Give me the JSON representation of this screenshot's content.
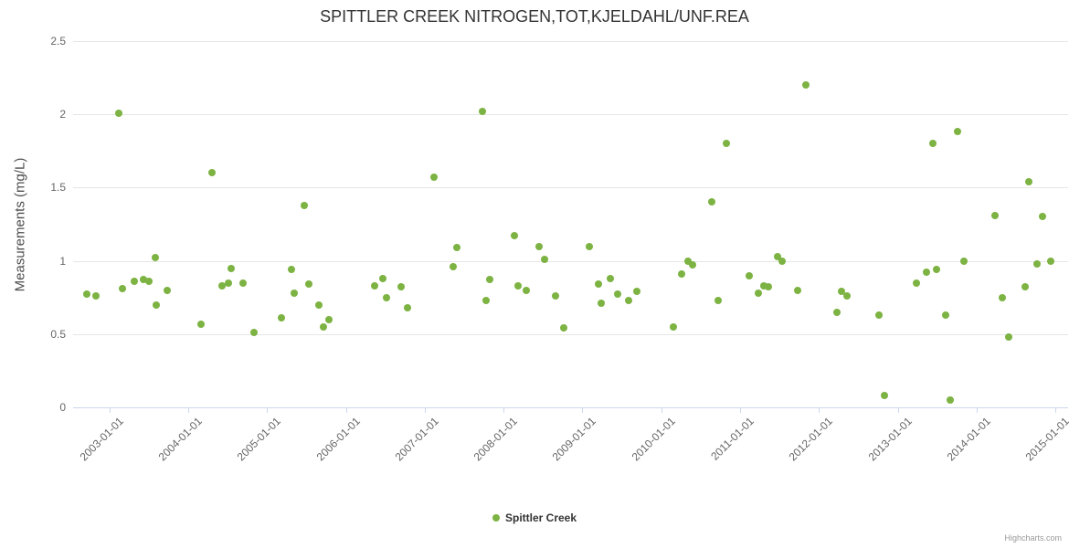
{
  "credits": "Highcharts.com",
  "colors": {
    "point": "#7cb342",
    "grid": "#e6e6e6",
    "axis_line": "#ccd6eb",
    "title": "#333333",
    "axis_label": "#666666",
    "legend_text": "#333333",
    "credits": "#999999"
  },
  "chart_data": {
    "type": "scatter",
    "title": "SPITTLER CREEK NITROGEN,TOT,KJELDAHL/UNF.REA",
    "xlabel": "",
    "ylabel": "Measurements (mg/L)",
    "xlim": [
      2002.54,
      2015.16
    ],
    "ylim": [
      0,
      2.5
    ],
    "grid": "horizontal",
    "legend_position": "bottom-center",
    "x_ticks": [
      {
        "value": 2003,
        "label": "2003-01-01"
      },
      {
        "value": 2004,
        "label": "2004-01-01"
      },
      {
        "value": 2005,
        "label": "2005-01-01"
      },
      {
        "value": 2006,
        "label": "2006-01-01"
      },
      {
        "value": 2007,
        "label": "2007-01-01"
      },
      {
        "value": 2008,
        "label": "2008-01-01"
      },
      {
        "value": 2009,
        "label": "2009-01-01"
      },
      {
        "value": 2010,
        "label": "2010-01-01"
      },
      {
        "value": 2011,
        "label": "2011-01-01"
      },
      {
        "value": 2012,
        "label": "2012-01-01"
      },
      {
        "value": 2013,
        "label": "2013-01-01"
      },
      {
        "value": 2014,
        "label": "2014-01-01"
      },
      {
        "value": 2015,
        "label": "2015-01-01"
      }
    ],
    "y_ticks": [
      {
        "value": 0,
        "label": "0"
      },
      {
        "value": 0.5,
        "label": "0.5"
      },
      {
        "value": 1,
        "label": "1"
      },
      {
        "value": 1.5,
        "label": "1.5"
      },
      {
        "value": 2,
        "label": "2"
      },
      {
        "value": 2.5,
        "label": "2.5"
      }
    ],
    "series": [
      {
        "name": "Spittler Creek",
        "points": [
          [
            2002.71,
            0.77
          ],
          [
            2002.83,
            0.76
          ],
          [
            2003.12,
            2.01
          ],
          [
            2003.17,
            0.81
          ],
          [
            2003.32,
            0.86
          ],
          [
            2003.43,
            0.87
          ],
          [
            2003.5,
            0.86
          ],
          [
            2003.58,
            1.02
          ],
          [
            2003.6,
            0.7
          ],
          [
            2003.73,
            0.8
          ],
          [
            2004.16,
            0.57
          ],
          [
            2004.3,
            1.6
          ],
          [
            2004.43,
            0.83
          ],
          [
            2004.51,
            0.85
          ],
          [
            2004.54,
            0.95
          ],
          [
            2004.69,
            0.85
          ],
          [
            2004.84,
            0.51
          ],
          [
            2005.18,
            0.61
          ],
          [
            2005.31,
            0.94
          ],
          [
            2005.34,
            0.78
          ],
          [
            2005.47,
            1.38
          ],
          [
            2005.53,
            0.84
          ],
          [
            2005.66,
            0.7
          ],
          [
            2005.72,
            0.55
          ],
          [
            2005.79,
            0.6
          ],
          [
            2006.37,
            0.83
          ],
          [
            2006.47,
            0.88
          ],
          [
            2006.52,
            0.75
          ],
          [
            2006.7,
            0.82
          ],
          [
            2006.78,
            0.68
          ],
          [
            2007.12,
            1.57
          ],
          [
            2007.36,
            0.96
          ],
          [
            2007.41,
            1.09
          ],
          [
            2007.73,
            2.02
          ],
          [
            2007.78,
            0.73
          ],
          [
            2007.82,
            0.87
          ],
          [
            2008.14,
            1.17
          ],
          [
            2008.18,
            0.83
          ],
          [
            2008.29,
            0.8
          ],
          [
            2008.45,
            1.1
          ],
          [
            2008.52,
            1.01
          ],
          [
            2008.66,
            0.76
          ],
          [
            2008.76,
            0.54
          ],
          [
            2009.09,
            1.1
          ],
          [
            2009.2,
            0.84
          ],
          [
            2009.24,
            0.71
          ],
          [
            2009.35,
            0.88
          ],
          [
            2009.45,
            0.77
          ],
          [
            2009.59,
            0.73
          ],
          [
            2009.69,
            0.79
          ],
          [
            2010.15,
            0.55
          ],
          [
            2010.26,
            0.91
          ],
          [
            2010.34,
            1.0
          ],
          [
            2010.4,
            0.97
          ],
          [
            2010.64,
            1.4
          ],
          [
            2010.72,
            0.73
          ],
          [
            2010.83,
            1.8
          ],
          [
            2011.12,
            0.9
          ],
          [
            2011.23,
            0.78
          ],
          [
            2011.3,
            0.83
          ],
          [
            2011.36,
            0.82
          ],
          [
            2011.47,
            1.03
          ],
          [
            2011.53,
            1.0
          ],
          [
            2011.73,
            0.8
          ],
          [
            2011.83,
            2.2
          ],
          [
            2012.23,
            0.65
          ],
          [
            2012.29,
            0.79
          ],
          [
            2012.36,
            0.76
          ],
          [
            2012.76,
            0.63
          ],
          [
            2012.83,
            0.08
          ],
          [
            2013.24,
            0.85
          ],
          [
            2013.36,
            0.92
          ],
          [
            2013.45,
            1.8
          ],
          [
            2013.49,
            0.94
          ],
          [
            2013.61,
            0.63
          ],
          [
            2013.67,
            0.05
          ],
          [
            2013.76,
            1.88
          ],
          [
            2013.84,
            1.0
          ],
          [
            2014.23,
            1.31
          ],
          [
            2014.33,
            0.75
          ],
          [
            2014.41,
            0.48
          ],
          [
            2014.61,
            0.82
          ],
          [
            2014.66,
            1.54
          ],
          [
            2014.77,
            0.98
          ],
          [
            2014.84,
            1.3
          ],
          [
            2014.94,
            1.0
          ]
        ]
      }
    ]
  }
}
